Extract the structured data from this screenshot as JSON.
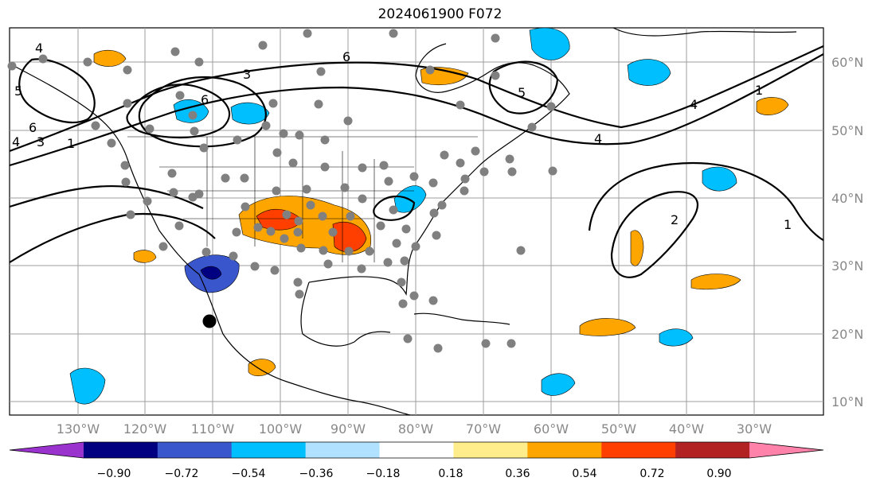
{
  "title": "2024061900 F072",
  "map": {
    "lat_labels": [
      "60°N",
      "50°N",
      "40°N",
      "30°N",
      "20°N",
      "10°N"
    ],
    "lon_labels": [
      "130°W",
      "120°W",
      "110°W",
      "100°W",
      "90°W",
      "80°W",
      "70°W",
      "60°W",
      "50°W",
      "40°W",
      "30°W"
    ],
    "contour_labels": [
      "4",
      "6",
      "3",
      "6",
      "5",
      "4",
      "6",
      "4",
      "5",
      "1",
      "3",
      "4",
      "1",
      "2",
      "1"
    ]
  },
  "colorbar": {
    "colors": [
      "#9a32cd",
      "#000080",
      "#3a56cc",
      "#00bfff",
      "#b0e2ff",
      "#ffffff",
      "#ffec8b",
      "#ffa500",
      "#ff3f00",
      "#b22222",
      "#ff82ab"
    ],
    "tick_labels": [
      "−0.90",
      "−0.72",
      "−0.54",
      "−0.36",
      "−0.18",
      "0.18",
      "0.36",
      "0.54",
      "0.72",
      "0.90"
    ]
  },
  "colors": {
    "grid": "#9e9e9e",
    "station": "#808080",
    "marker": "#000000"
  }
}
